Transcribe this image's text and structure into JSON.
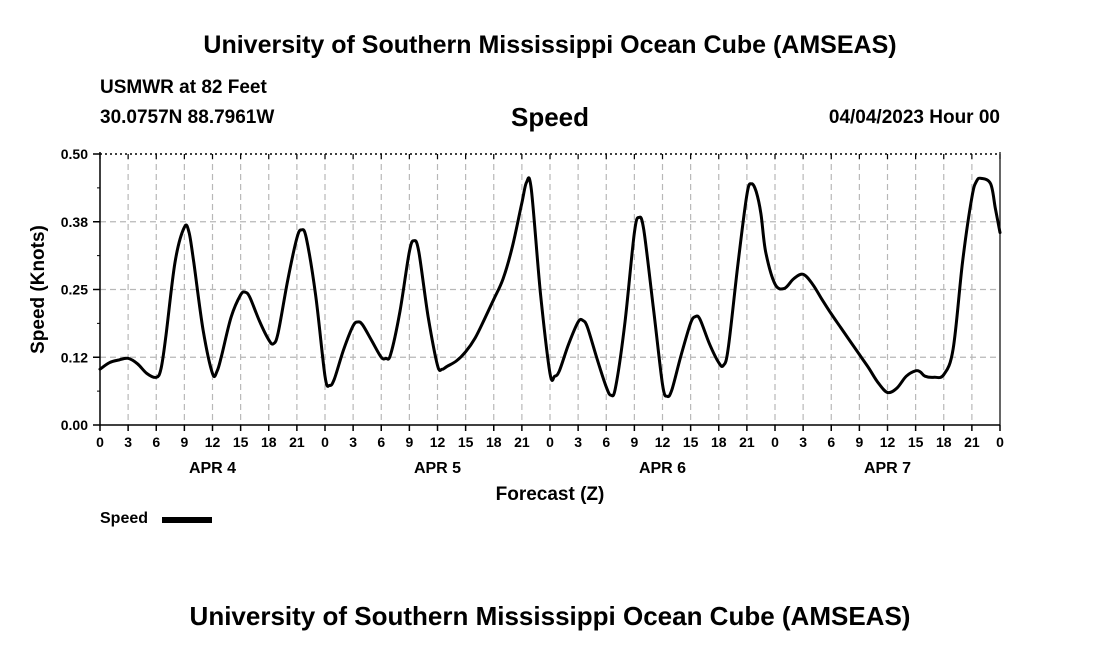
{
  "header": {
    "title": "University of Southern Mississippi Ocean Cube (AMSEAS)",
    "station": "USMWR at 82 Feet",
    "coords": "30.0757N  88.7961W",
    "variable": "Speed",
    "datetime": "04/04/2023 Hour 00"
  },
  "footer": {
    "title": "University of Southern Mississippi Ocean Cube (AMSEAS)"
  },
  "legend": {
    "label": "Speed"
  },
  "chart_data": {
    "type": "line",
    "title": "Speed",
    "xlabel": "Forecast (Z)",
    "ylabel": "Speed (Knots)",
    "ylim": [
      0.0,
      0.5
    ],
    "y_ticks": [
      "0.00",
      "0.12",
      "0.25",
      "0.38",
      "0.50"
    ],
    "y_tick_values": [
      0.0,
      0.125,
      0.25,
      0.375,
      0.5
    ],
    "xlim": [
      0,
      96
    ],
    "x_tick_labels": [
      "0",
      "3",
      "6",
      "9",
      "12",
      "15",
      "18",
      "21",
      "0",
      "3",
      "6",
      "9",
      "12",
      "15",
      "18",
      "21",
      "0",
      "3",
      "6",
      "9",
      "12",
      "15",
      "18",
      "21",
      "0",
      "3",
      "6",
      "9",
      "12",
      "15",
      "18",
      "21",
      "0"
    ],
    "day_labels": [
      {
        "label": "APR 4",
        "x": 12
      },
      {
        "label": "APR 5",
        "x": 36
      },
      {
        "label": "APR 6",
        "x": 60
      },
      {
        "label": "APR 7",
        "x": 84
      }
    ],
    "grid": true,
    "series": [
      {
        "name": "Speed",
        "color": "#000000",
        "x": [
          0,
          1,
          2,
          3,
          4,
          5,
          6,
          6.5,
          7,
          8,
          9,
          9.5,
          10,
          11,
          12,
          12.5,
          13,
          14,
          15,
          15.5,
          16,
          17,
          18,
          18.5,
          19,
          20,
          21,
          21.5,
          22,
          23,
          24,
          24.5,
          25,
          26,
          27,
          27.5,
          28,
          29,
          30,
          30.5,
          31,
          32,
          33,
          33.5,
          34,
          35,
          36,
          36.5,
          37,
          38,
          39,
          40,
          41,
          42,
          43,
          44,
          45,
          45.5,
          46,
          47,
          48,
          48.5,
          49,
          50,
          51,
          51.5,
          52,
          53,
          54,
          54.5,
          55,
          56,
          57,
          57.5,
          58,
          59,
          60,
          60.5,
          61,
          62,
          63,
          63.5,
          64,
          65,
          66,
          66.5,
          67,
          68,
          69,
          69.5,
          70,
          70.5,
          71,
          72,
          73,
          74,
          75,
          76,
          77,
          78,
          79,
          80,
          81,
          82,
          83,
          84,
          85,
          86,
          87,
          87.5,
          88,
          89,
          90,
          91,
          92,
          93,
          93.5,
          94,
          95,
          95.5,
          96
        ],
        "values": [
          0.103,
          0.115,
          0.12,
          0.123,
          0.113,
          0.095,
          0.088,
          0.103,
          0.16,
          0.3,
          0.365,
          0.355,
          0.3,
          0.175,
          0.095,
          0.1,
          0.13,
          0.2,
          0.24,
          0.245,
          0.235,
          0.192,
          0.157,
          0.15,
          0.17,
          0.265,
          0.345,
          0.36,
          0.345,
          0.24,
          0.09,
          0.073,
          0.085,
          0.14,
          0.183,
          0.19,
          0.185,
          0.155,
          0.125,
          0.123,
          0.13,
          0.21,
          0.32,
          0.34,
          0.32,
          0.2,
          0.11,
          0.103,
          0.108,
          0.118,
          0.135,
          0.16,
          0.195,
          0.232,
          0.27,
          0.33,
          0.41,
          0.448,
          0.435,
          0.24,
          0.095,
          0.09,
          0.1,
          0.15,
          0.19,
          0.193,
          0.18,
          0.123,
          0.07,
          0.055,
          0.07,
          0.19,
          0.355,
          0.383,
          0.36,
          0.22,
          0.075,
          0.053,
          0.065,
          0.13,
          0.188,
          0.2,
          0.195,
          0.15,
          0.115,
          0.11,
          0.14,
          0.29,
          0.425,
          0.445,
          0.43,
          0.39,
          0.32,
          0.26,
          0.252,
          0.27,
          0.278,
          0.26,
          0.232,
          0.205,
          0.18,
          0.155,
          0.13,
          0.105,
          0.078,
          0.06,
          0.068,
          0.09,
          0.1,
          0.098,
          0.09,
          0.088,
          0.093,
          0.14,
          0.3,
          0.42,
          0.45,
          0.455,
          0.445,
          0.4,
          0.355
        ]
      }
    ]
  }
}
